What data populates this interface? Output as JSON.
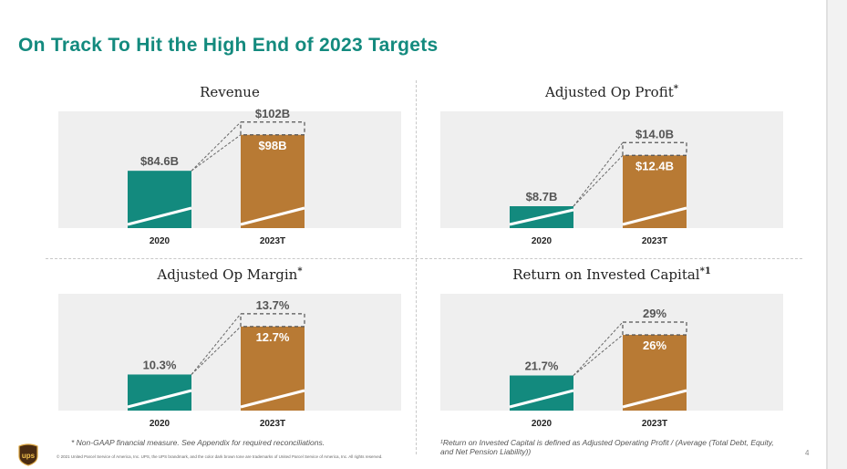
{
  "title": "On Track To Hit the High End of 2023 Targets",
  "colors": {
    "accent": "#138a7e",
    "gold": "#b87a34",
    "panel_bg": "#efefef"
  },
  "footnote_left": "* Non-GAAP financial measure. See Appendix for required reconciliations.",
  "footnote_right": "¹Return on Invested Capital is defined as Adjusted Operating Profit / (Average (Total Debt, Equity, and Net Pension Liability))",
  "copyright": "© 2021 United Parcel Service of America, Inc. UPS, the UPS brandmark, and the color dark brown tone are trademarks of United Parcel Service of America, Inc. All rights reserved.",
  "logo_text": "ups",
  "page_number": "4",
  "chart_data": [
    {
      "type": "bar",
      "title": "Revenue",
      "title_sup": "",
      "categories": [
        "2020",
        "2023T"
      ],
      "values": [
        84.6,
        98
      ],
      "target_high": 102,
      "labels": [
        "$84.6B",
        "$98B"
      ],
      "target_label": "$102B"
    },
    {
      "type": "bar",
      "title": "Adjusted Op Profit",
      "title_sup": "*",
      "categories": [
        "2020",
        "2023T"
      ],
      "values": [
        8.7,
        12.4
      ],
      "target_high": 14.0,
      "labels": [
        "$8.7B",
        "$12.4B"
      ],
      "target_label": "$14.0B"
    },
    {
      "type": "bar",
      "title": "Adjusted Op Margin",
      "title_sup": "*",
      "categories": [
        "2020",
        "2023T"
      ],
      "values": [
        10.3,
        12.7
      ],
      "target_high": 13.7,
      "labels": [
        "10.3%",
        "12.7%"
      ],
      "target_label": "13.7%"
    },
    {
      "type": "bar",
      "title": "Return on Invested Capital",
      "title_sup": "*1",
      "categories": [
        "2020",
        "2023T"
      ],
      "values": [
        21.7,
        26
      ],
      "target_high": 29,
      "labels": [
        "21.7%",
        "26%"
      ],
      "target_label": "29%"
    }
  ]
}
